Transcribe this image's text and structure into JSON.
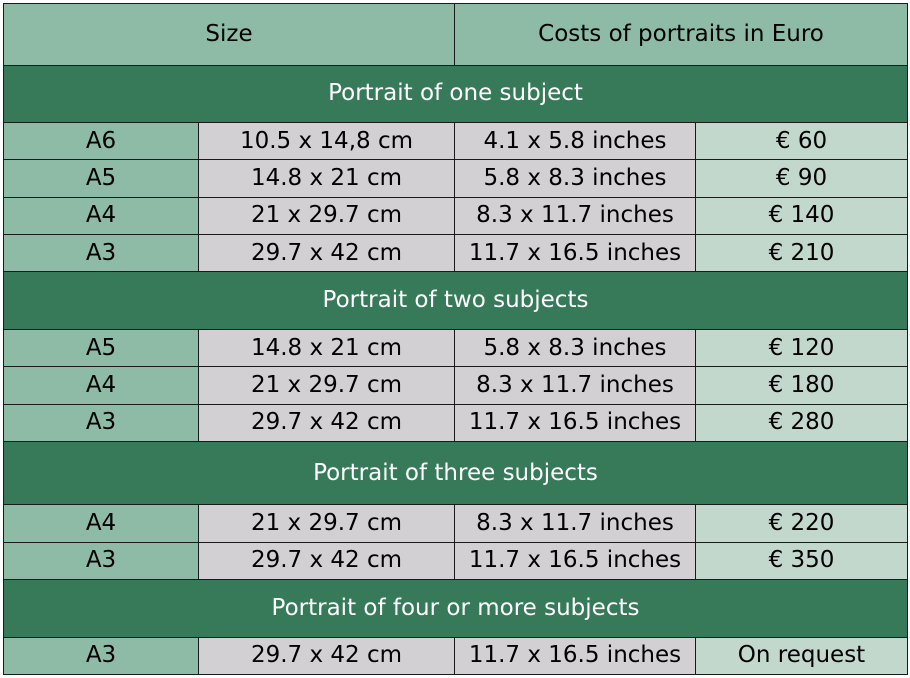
{
  "header": {
    "size_label": "Size",
    "costs_label": "Costs of portraits in Euro"
  },
  "sections": [
    {
      "title": "Portrait of one subject",
      "rows": [
        {
          "size": "A6",
          "cm": "10.5 x 14,8 cm",
          "inches": "4.1 x 5.8 inches",
          "price": "€ 60"
        },
        {
          "size": "A5",
          "cm": "14.8 x 21 cm",
          "inches": "5.8 x 8.3 inches",
          "price": "€ 90"
        },
        {
          "size": "A4",
          "cm": "21 x 29.7 cm",
          "inches": "8.3 x 11.7 inches",
          "price": "€ 140"
        },
        {
          "size": "A3",
          "cm": "29.7 x 42 cm",
          "inches": "11.7 x 16.5 inches",
          "price": "€ 210"
        }
      ]
    },
    {
      "title": "Portrait of two subjects",
      "rows": [
        {
          "size": "A5",
          "cm": "14.8 x 21 cm",
          "inches": "5.8 x 8.3 inches",
          "price": "€ 120"
        },
        {
          "size": "A4",
          "cm": "21 x 29.7 cm",
          "inches": "8.3 x 11.7 inches",
          "price": "€ 180"
        },
        {
          "size": "A3",
          "cm": "29.7 x 42 cm",
          "inches": "11.7 x 16.5 inches",
          "price": "€ 280"
        }
      ]
    },
    {
      "title": "Portrait of three subjects",
      "rows": [
        {
          "size": "A4",
          "cm": "21 x 29.7 cm",
          "inches": "8.3 x 11.7 inches",
          "price": "€ 220"
        },
        {
          "size": "A3",
          "cm": "29.7 x 42 cm",
          "inches": "11.7 x 16.5 inches",
          "price": "€ 350"
        }
      ]
    },
    {
      "title": "Portrait of four or more subjects",
      "rows": [
        {
          "size": "A3",
          "cm": "29.7 x 42 cm",
          "inches": "11.7 x 16.5 inches",
          "price": "On request"
        }
      ]
    }
  ],
  "colors": {
    "header_bg": "#8dbba6",
    "section_bg": "#377a5a",
    "size_col_bg": "#8dbba6",
    "dimension_col_bg": "#d2d0d2",
    "price_col_bg": "#c3d8cc",
    "border": "#1a1a1a"
  }
}
